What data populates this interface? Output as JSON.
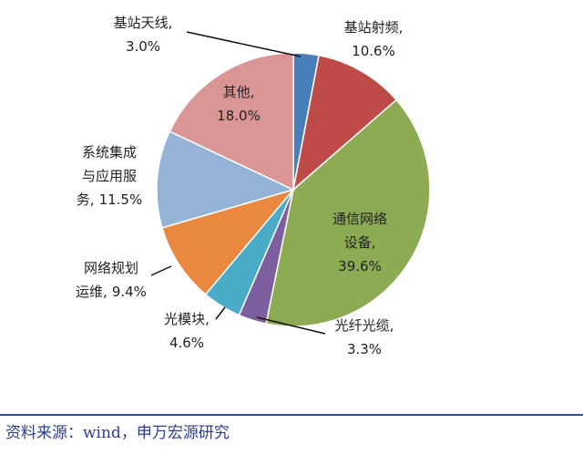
{
  "chart_data": {
    "type": "pie",
    "categories": [
      "基站天线,",
      "基站射频,",
      "通信网络设备,",
      "光纤光缆,",
      "光模块,",
      "网络规划运维,",
      "系统集成与应用服务,",
      "其他,"
    ],
    "values": [
      3.0,
      10.6,
      39.6,
      3.3,
      4.6,
      9.4,
      11.5,
      18.0
    ],
    "value_labels": [
      "3.0%",
      "10.6%",
      "39.6%",
      "3.3%",
      "4.6%",
      "9.4%",
      "11.5%",
      "18.0%"
    ],
    "colors": [
      "#4a7ebb",
      "#be4b48",
      "#8cab52",
      "#7d5fa0",
      "#4aacc6",
      "#e9883e",
      "#95b3d7",
      "#d99694"
    ]
  },
  "source": "资料来源：wind，申万宏源研究"
}
